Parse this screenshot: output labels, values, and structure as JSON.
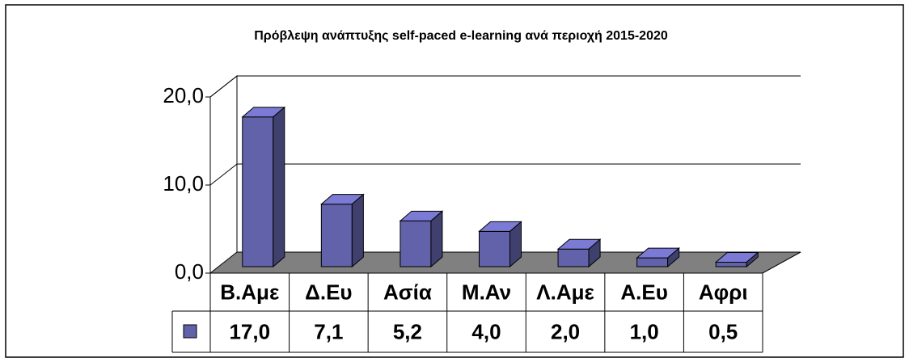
{
  "chart_data": {
    "type": "bar3d",
    "title": "Πρόβλεψη ανάπτυξης self-paced e-learning ανά περιοχή 2015-2020",
    "categories": [
      "Β.Αμε",
      "Δ.Ευ",
      "Ασία",
      "Μ.Αν",
      "Λ.Αμε",
      "Α.Ευ",
      "Αφρι"
    ],
    "values": [
      17.0,
      7.1,
      5.2,
      4.0,
      2.0,
      1.0,
      0.5
    ],
    "value_labels": [
      "17,0",
      "7,1",
      "5,2",
      "4,0",
      "2,0",
      "1,0",
      "0,5"
    ],
    "color": "#6262aa",
    "ylim": [
      0,
      20
    ],
    "yticks": [
      {
        "value": 0,
        "label": "0,0"
      },
      {
        "value": 10,
        "label": "10,0"
      },
      {
        "value": 20,
        "label": "20,0"
      }
    ],
    "grid": true
  }
}
